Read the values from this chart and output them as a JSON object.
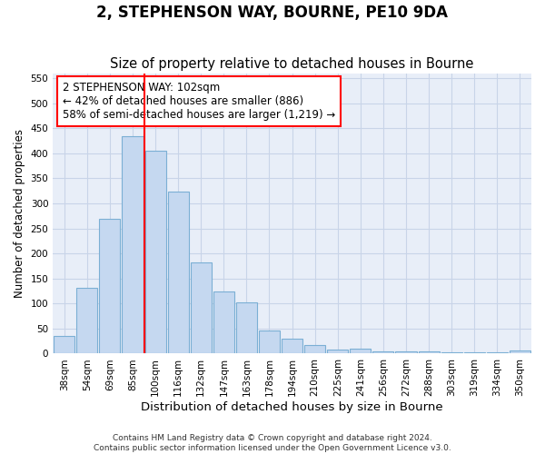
{
  "title": "2, STEPHENSON WAY, BOURNE, PE10 9DA",
  "subtitle": "Size of property relative to detached houses in Bourne",
  "xlabel": "Distribution of detached houses by size in Bourne",
  "ylabel": "Number of detached properties",
  "categories": [
    "38sqm",
    "54sqm",
    "69sqm",
    "85sqm",
    "100sqm",
    "116sqm",
    "132sqm",
    "147sqm",
    "163sqm",
    "178sqm",
    "194sqm",
    "210sqm",
    "225sqm",
    "241sqm",
    "256sqm",
    "272sqm",
    "288sqm",
    "303sqm",
    "319sqm",
    "334sqm",
    "350sqm"
  ],
  "values": [
    35,
    132,
    270,
    435,
    405,
    323,
    183,
    125,
    103,
    46,
    29,
    18,
    8,
    9,
    4,
    5,
    4,
    3,
    3,
    2,
    6
  ],
  "bar_color": "#c5d8f0",
  "bar_edge_color": "#7bafd4",
  "grid_color": "#c8d4e8",
  "background_color": "#e8eef8",
  "vline_color": "red",
  "vline_position": 4.5,
  "annotation_text": "2 STEPHENSON WAY: 102sqm\n← 42% of detached houses are smaller (886)\n58% of semi-detached houses are larger (1,219) →",
  "annotation_box_color": "white",
  "annotation_box_edge": "red",
  "ylim": [
    0,
    560
  ],
  "yticks": [
    0,
    50,
    100,
    150,
    200,
    250,
    300,
    350,
    400,
    450,
    500,
    550
  ],
  "footer": "Contains HM Land Registry data © Crown copyright and database right 2024.\nContains public sector information licensed under the Open Government Licence v3.0.",
  "title_fontsize": 12,
  "subtitle_fontsize": 10.5,
  "xlabel_fontsize": 9.5,
  "ylabel_fontsize": 8.5,
  "tick_fontsize": 7.5,
  "annotation_fontsize": 8.5,
  "footer_fontsize": 6.5
}
